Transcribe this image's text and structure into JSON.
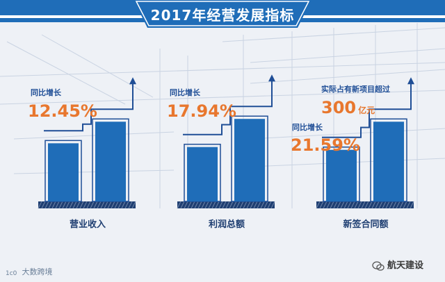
{
  "title": "2017年经营发展指标",
  "colors": {
    "primary_blue": "#1f6db8",
    "dark_blue": "#1f4e96",
    "orange": "#e8772e",
    "background": "#eef1f6"
  },
  "panels": [
    {
      "category": "营业收入",
      "growth_label": "同比增长",
      "growth_value": "12.45%",
      "bars": [
        0.62,
        0.85
      ]
    },
    {
      "category": "利润总额",
      "growth_label": "同比增长",
      "growth_value": "17.94%",
      "bars": [
        0.58,
        0.88
      ]
    },
    {
      "category": "新签合同额",
      "growth_label": "同比增长",
      "growth_value": "21.59%",
      "extra_label": "实际占有新项目超过",
      "extra_value": "300",
      "extra_unit": "亿元",
      "bars": [
        0.55,
        0.85
      ]
    }
  ],
  "footer": {
    "source_left": "大数跨境",
    "watermark": "航天建设",
    "wechat_icon": "wechat-icon",
    "logo_icon": "bigdata-logo-icon"
  }
}
